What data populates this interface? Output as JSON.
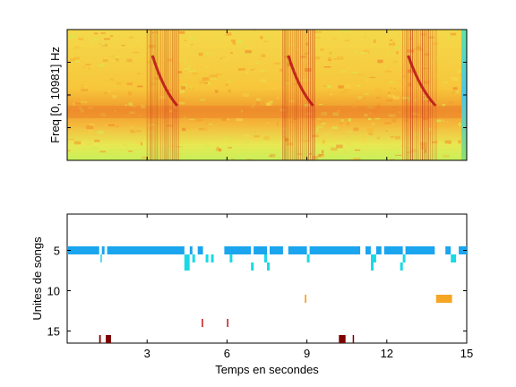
{
  "chart_data": [
    {
      "type": "heatmap",
      "name": "spectrogram",
      "ylabel": "Freq [0, 10981] Hz",
      "xlim": [
        0,
        15
      ],
      "ylim": [
        0,
        10981
      ],
      "colormap": "jet",
      "grid": false,
      "harmonic_bursts": [
        {
          "start": 3.0,
          "end": 4.2
        },
        {
          "start": 8.1,
          "end": 9.3
        },
        {
          "start": 12.6,
          "end": 13.9
        }
      ],
      "tail_band": {
        "start": 14.8,
        "end": 15.0
      }
    },
    {
      "type": "scatter",
      "name": "song-units",
      "xlabel": "Temps en secondes",
      "ylabel": "Unites de songs",
      "xlim": [
        0,
        15
      ],
      "ylim": [
        16.5,
        0.5
      ],
      "xticks": [
        3,
        6,
        9,
        12,
        15
      ],
      "yticks": [
        5,
        10,
        15
      ],
      "grid": false,
      "series": [
        {
          "unit": 5,
          "color": "#1aa5ee",
          "segments": [
            [
              0.0,
              1.2
            ],
            [
              1.3,
              1.4
            ],
            [
              1.5,
              4.4
            ],
            [
              4.6,
              4.7
            ],
            [
              4.9,
              5.1
            ],
            [
              5.9,
              6.9
            ],
            [
              7.0,
              7.5
            ],
            [
              7.6,
              8.1
            ],
            [
              8.3,
              9.0
            ],
            [
              9.1,
              11.0
            ],
            [
              11.2,
              11.4
            ],
            [
              11.6,
              11.8
            ],
            [
              11.9,
              12.6
            ],
            [
              12.7,
              13.8
            ],
            [
              14.2,
              14.4
            ],
            [
              14.7,
              15.0
            ]
          ]
        },
        {
          "unit": 6,
          "color": "#1ad9e6",
          "segments": [
            [
              1.25,
              1.3
            ],
            [
              4.4,
              4.6
            ],
            [
              4.7,
              4.8
            ],
            [
              5.2,
              5.3
            ],
            [
              5.4,
              5.5
            ],
            [
              6.1,
              6.2
            ],
            [
              7.4,
              7.5
            ],
            [
              9.0,
              9.1
            ],
            [
              11.4,
              11.6
            ],
            [
              12.6,
              12.7
            ],
            [
              14.4,
              14.6
            ]
          ]
        },
        {
          "unit": 7,
          "color": "#1ad9e6",
          "segments": [
            [
              4.4,
              4.6
            ],
            [
              6.9,
              7.0
            ],
            [
              7.5,
              7.6
            ],
            [
              11.4,
              11.5
            ],
            [
              12.5,
              12.6
            ]
          ]
        },
        {
          "unit": 11,
          "color": "#f5a623",
          "segments": [
            [
              8.92,
              8.98
            ],
            [
              13.85,
              14.45
            ]
          ]
        },
        {
          "unit": 14,
          "color": "#c81414",
          "segments": [
            [
              5.05,
              5.1
            ],
            [
              6.0,
              6.05
            ]
          ]
        },
        {
          "unit": 16,
          "color": "#7d0000",
          "segments": [
            [
              1.2,
              1.26
            ],
            [
              1.45,
              1.65
            ],
            [
              10.2,
              10.45
            ],
            [
              10.72,
              10.76
            ]
          ]
        }
      ]
    }
  ]
}
